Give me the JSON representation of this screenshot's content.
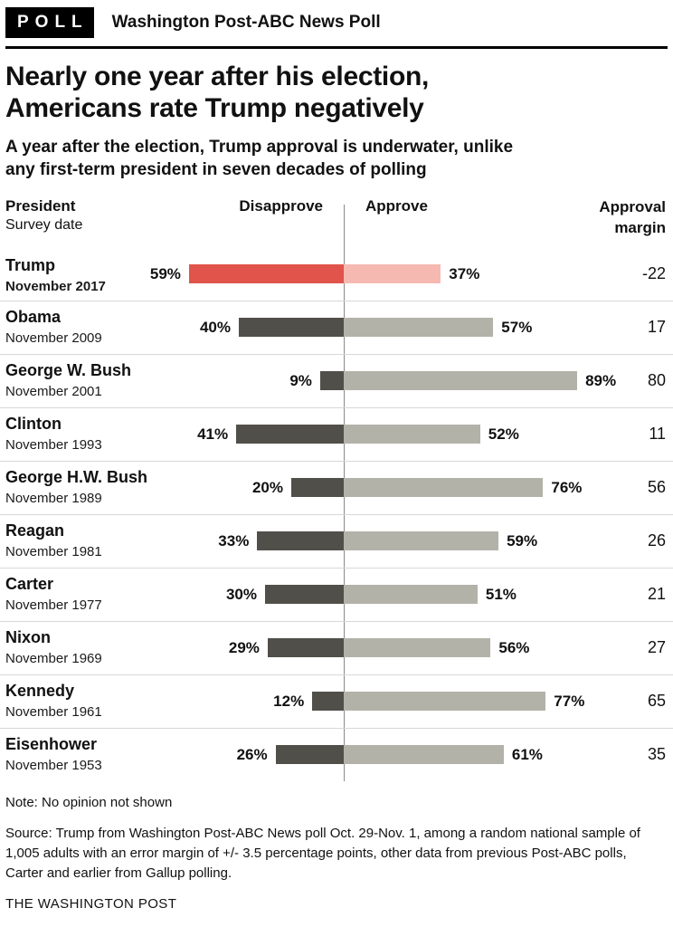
{
  "header": {
    "kicker": "POLL",
    "title": "Washington Post-ABC News Poll"
  },
  "headline": "Nearly one year after his election,\nAmericans rate Trump negatively",
  "subhead": "A year after the election, Trump approval is underwater, unlike\nany first-term president in seven decades of polling",
  "columns": {
    "president": "President",
    "survey_date": "Survey date",
    "disapprove": "Disapprove",
    "approve": "Approve",
    "margin": "Approval\nmargin"
  },
  "chart_data": {
    "type": "bar",
    "subtype": "diverging-horizontal",
    "title": "Nearly one year after his election, Americans rate Trump negatively",
    "unit": "%",
    "series": [
      {
        "name": "Disapprove",
        "direction": "left"
      },
      {
        "name": "Approve",
        "direction": "right"
      }
    ],
    "rows": [
      {
        "president": "Trump",
        "date": "November 2017",
        "disapprove": 59,
        "approve": 37,
        "margin": -22,
        "highlight": true
      },
      {
        "president": "Obama",
        "date": "November 2009",
        "disapprove": 40,
        "approve": 57,
        "margin": 17,
        "highlight": false
      },
      {
        "president": "George W. Bush",
        "date": "November 2001",
        "disapprove": 9,
        "approve": 89,
        "margin": 80,
        "highlight": false
      },
      {
        "president": "Clinton",
        "date": "November 1993",
        "disapprove": 41,
        "approve": 52,
        "margin": 11,
        "highlight": false
      },
      {
        "president": "George H.W. Bush",
        "date": "November 1989",
        "disapprove": 20,
        "approve": 76,
        "margin": 56,
        "highlight": false
      },
      {
        "president": "Reagan",
        "date": "November 1981",
        "disapprove": 33,
        "approve": 59,
        "margin": 26,
        "highlight": false
      },
      {
        "president": "Carter",
        "date": "November 1977",
        "disapprove": 30,
        "approve": 51,
        "margin": 21,
        "highlight": false
      },
      {
        "president": "Nixon",
        "date": "November 1969",
        "disapprove": 29,
        "approve": 56,
        "margin": 27,
        "highlight": false
      },
      {
        "president": "Kennedy",
        "date": "November 1961",
        "disapprove": 12,
        "approve": 77,
        "margin": 65,
        "highlight": false
      },
      {
        "president": "Eisenhower",
        "date": "November 1953",
        "disapprove": 26,
        "approve": 61,
        "margin": 35,
        "highlight": false
      }
    ],
    "colors": {
      "disapprove_highlight": "#e0544b",
      "approve_highlight": "#f6b9b1",
      "disapprove": "#514f49",
      "approve": "#b3b2a9",
      "axis": "#8a8a8a"
    },
    "legend": "none",
    "grid": "off"
  },
  "note": "Note: No opinion not shown",
  "source": "Source: Trump from Washington Post-ABC News poll Oct. 29-Nov. 1, among a random national sample of 1,005 adults with an error margin of +/- 3.5 percentage points, other data from previous Post-ABC polls, Carter and earlier from Gallup polling.",
  "footer": "THE WASHINGTON POST"
}
